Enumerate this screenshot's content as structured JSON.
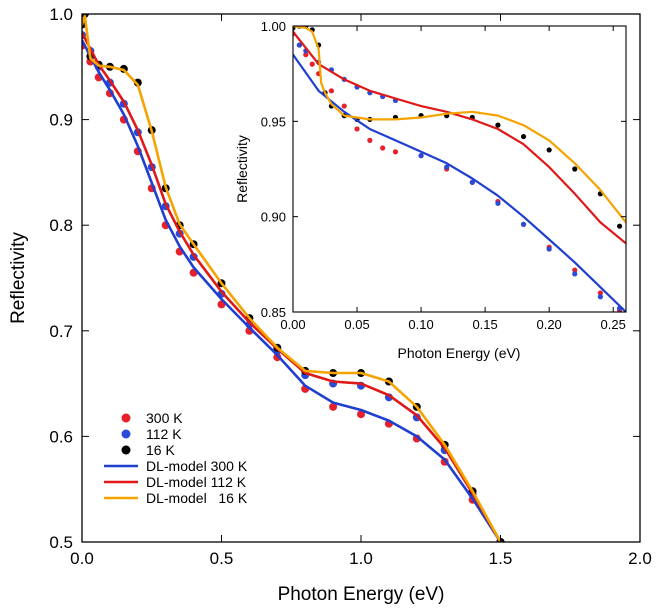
{
  "chart_data": [
    {
      "type": "scatter",
      "panel": "main",
      "xlabel": "Photon Energy (eV)",
      "ylabel": "Reflectivity",
      "xlim": [
        0.0,
        2.0
      ],
      "ylim": [
        0.5,
        1.0
      ],
      "x_ticks": [
        "0.0",
        "0.5",
        "1.0",
        "1.5",
        "2.0"
      ],
      "y_ticks": [
        "0.5",
        "0.6",
        "0.7",
        "0.8",
        "0.9",
        "1.0"
      ],
      "legend_position": "lower-left",
      "series": [
        {
          "name": "300 K",
          "kind": "points",
          "color": "#e8202a",
          "x": [
            0.0,
            0.03,
            0.06,
            0.1,
            0.15,
            0.2,
            0.25,
            0.3,
            0.35,
            0.4,
            0.5,
            0.6,
            0.7,
            0.8,
            0.9,
            1.0,
            1.1,
            1.2,
            1.3,
            1.4,
            1.5
          ],
          "y": [
            0.97,
            0.955,
            0.94,
            0.925,
            0.9,
            0.87,
            0.835,
            0.8,
            0.775,
            0.755,
            0.725,
            0.7,
            0.675,
            0.645,
            0.628,
            0.621,
            0.612,
            0.598,
            0.576,
            0.54,
            0.5
          ]
        },
        {
          "name": "112 K",
          "kind": "points",
          "color": "#2a4bd7",
          "x": [
            0.0,
            0.03,
            0.06,
            0.1,
            0.15,
            0.2,
            0.25,
            0.3,
            0.35,
            0.4,
            0.5,
            0.6,
            0.7,
            0.8,
            0.9,
            1.0,
            1.1,
            1.2,
            1.3,
            1.4,
            1.5
          ],
          "y": [
            0.98,
            0.965,
            0.95,
            0.935,
            0.915,
            0.888,
            0.855,
            0.818,
            0.792,
            0.77,
            0.735,
            0.706,
            0.681,
            0.658,
            0.65,
            0.648,
            0.637,
            0.618,
            0.587,
            0.545,
            0.5
          ]
        },
        {
          "name": "16 K",
          "kind": "points",
          "color": "#000000",
          "x": [
            0.0,
            0.01,
            0.03,
            0.06,
            0.1,
            0.15,
            0.2,
            0.25,
            0.3,
            0.35,
            0.4,
            0.5,
            0.6,
            0.7,
            0.8,
            0.9,
            1.0,
            1.1,
            1.2,
            1.3,
            1.4,
            1.5
          ],
          "y": [
            0.99,
            1.0,
            0.96,
            0.952,
            0.95,
            0.948,
            0.935,
            0.89,
            0.835,
            0.8,
            0.782,
            0.745,
            0.712,
            0.684,
            0.662,
            0.66,
            0.66,
            0.652,
            0.628,
            0.592,
            0.548,
            0.5
          ]
        },
        {
          "name": "DL-model 300 K",
          "kind": "line",
          "color": "#1f3fd0",
          "x": [
            0.0,
            0.03,
            0.06,
            0.1,
            0.15,
            0.2,
            0.25,
            0.3,
            0.35,
            0.4,
            0.5,
            0.6,
            0.7,
            0.8,
            0.9,
            1.0,
            1.1,
            1.2,
            1.3,
            1.4,
            1.5
          ],
          "y": [
            0.975,
            0.96,
            0.945,
            0.928,
            0.905,
            0.875,
            0.84,
            0.805,
            0.78,
            0.76,
            0.73,
            0.703,
            0.677,
            0.648,
            0.632,
            0.625,
            0.615,
            0.6,
            0.578,
            0.541,
            0.5
          ]
        },
        {
          "name": "DL-model 112 K",
          "kind": "line",
          "color": "#e01818",
          "x": [
            0.0,
            0.03,
            0.06,
            0.1,
            0.15,
            0.2,
            0.25,
            0.3,
            0.35,
            0.4,
            0.5,
            0.6,
            0.7,
            0.8,
            0.9,
            1.0,
            1.1,
            1.2,
            1.3,
            1.4,
            1.5
          ],
          "y": [
            0.982,
            0.967,
            0.952,
            0.937,
            0.917,
            0.89,
            0.857,
            0.82,
            0.794,
            0.772,
            0.737,
            0.708,
            0.683,
            0.66,
            0.652,
            0.65,
            0.639,
            0.62,
            0.589,
            0.546,
            0.5
          ]
        },
        {
          "name": "DL-model   16 K",
          "kind": "line",
          "color": "#f5a300",
          "x": [
            0.0,
            0.01,
            0.03,
            0.06,
            0.1,
            0.15,
            0.2,
            0.25,
            0.3,
            0.35,
            0.4,
            0.5,
            0.6,
            0.7,
            0.8,
            0.9,
            1.0,
            1.1,
            1.2,
            1.3,
            1.4,
            1.5
          ],
          "y": [
            0.99,
            0.998,
            0.958,
            0.951,
            0.95,
            0.947,
            0.933,
            0.889,
            0.836,
            0.801,
            0.782,
            0.745,
            0.712,
            0.684,
            0.662,
            0.66,
            0.66,
            0.652,
            0.628,
            0.592,
            0.548,
            0.5
          ]
        }
      ]
    },
    {
      "type": "scatter",
      "panel": "inset",
      "xlabel": "Photon Energy (eV)",
      "ylabel": "Reflectivity",
      "xlim": [
        0.0,
        0.26
      ],
      "ylim": [
        0.85,
        1.0
      ],
      "x_ticks": [
        "0.00",
        "0.05",
        "0.10",
        "0.15",
        "0.20",
        "0.25"
      ],
      "y_ticks": [
        "0.85",
        "0.90",
        "0.95",
        "1.00"
      ],
      "series": [
        {
          "name": "300 K",
          "kind": "points",
          "color": "#e8202a",
          "x": [
            0.0,
            0.005,
            0.01,
            0.015,
            0.02,
            0.03,
            0.04,
            0.05,
            0.06,
            0.07,
            0.08,
            0.1,
            0.12,
            0.14,
            0.16,
            0.18,
            0.2,
            0.22,
            0.24,
            0.255
          ],
          "y": [
            0.996,
            0.99,
            0.985,
            0.98,
            0.975,
            0.966,
            0.958,
            0.946,
            0.94,
            0.936,
            0.934,
            0.932,
            0.925,
            0.918,
            0.908,
            0.896,
            0.884,
            0.872,
            0.86,
            0.851
          ]
        },
        {
          "name": "112 K",
          "kind": "points",
          "color": "#2a4bd7",
          "x": [
            0.005,
            0.01,
            0.02,
            0.03,
            0.04,
            0.05,
            0.06,
            0.07,
            0.08,
            0.1,
            0.12,
            0.14,
            0.16,
            0.18,
            0.2,
            0.22,
            0.24,
            0.255
          ],
          "y": [
            0.99,
            0.987,
            0.981,
            0.977,
            0.972,
            0.968,
            0.965,
            0.963,
            0.961,
            0.932,
            0.926,
            0.918,
            0.907,
            0.896,
            0.883,
            0.87,
            0.858,
            0.852
          ]
        },
        {
          "name": "16 K",
          "kind": "points",
          "color": "#000000",
          "x": [
            0.0,
            0.005,
            0.01,
            0.015,
            0.02,
            0.025,
            0.03,
            0.04,
            0.05,
            0.06,
            0.08,
            0.1,
            0.12,
            0.14,
            0.16,
            0.18,
            0.2,
            0.22,
            0.24,
            0.255
          ],
          "y": [
            0.999,
            1.0,
            1.0,
            0.998,
            0.99,
            0.965,
            0.958,
            0.953,
            0.951,
            0.951,
            0.952,
            0.953,
            0.953,
            0.952,
            0.948,
            0.942,
            0.935,
            0.925,
            0.912,
            0.895
          ]
        },
        {
          "name": "DL-model 300 K",
          "kind": "line",
          "color": "#1f3fd0",
          "x": [
            0.0,
            0.02,
            0.04,
            0.06,
            0.08,
            0.1,
            0.12,
            0.14,
            0.16,
            0.18,
            0.2,
            0.22,
            0.24,
            0.26
          ],
          "y": [
            0.985,
            0.966,
            0.955,
            0.946,
            0.94,
            0.934,
            0.928,
            0.92,
            0.911,
            0.9,
            0.888,
            0.876,
            0.863,
            0.85
          ]
        },
        {
          "name": "DL-model 112 K",
          "kind": "line",
          "color": "#e01818",
          "x": [
            0.0,
            0.02,
            0.04,
            0.06,
            0.08,
            0.1,
            0.12,
            0.14,
            0.16,
            0.18,
            0.2,
            0.22,
            0.24,
            0.26
          ],
          "y": [
            0.997,
            0.98,
            0.972,
            0.966,
            0.962,
            0.958,
            0.955,
            0.951,
            0.946,
            0.938,
            0.926,
            0.912,
            0.897,
            0.886
          ]
        },
        {
          "name": "DL-model   16 K",
          "kind": "line",
          "color": "#f5a300",
          "x": [
            0.0,
            0.01,
            0.015,
            0.02,
            0.022,
            0.025,
            0.03,
            0.04,
            0.06,
            0.08,
            0.1,
            0.12,
            0.14,
            0.16,
            0.18,
            0.2,
            0.22,
            0.24,
            0.26
          ],
          "y": [
            1.0,
            0.999,
            0.997,
            0.988,
            0.97,
            0.965,
            0.959,
            0.953,
            0.951,
            0.951,
            0.952,
            0.954,
            0.955,
            0.953,
            0.948,
            0.94,
            0.928,
            0.914,
            0.897
          ]
        }
      ]
    }
  ]
}
